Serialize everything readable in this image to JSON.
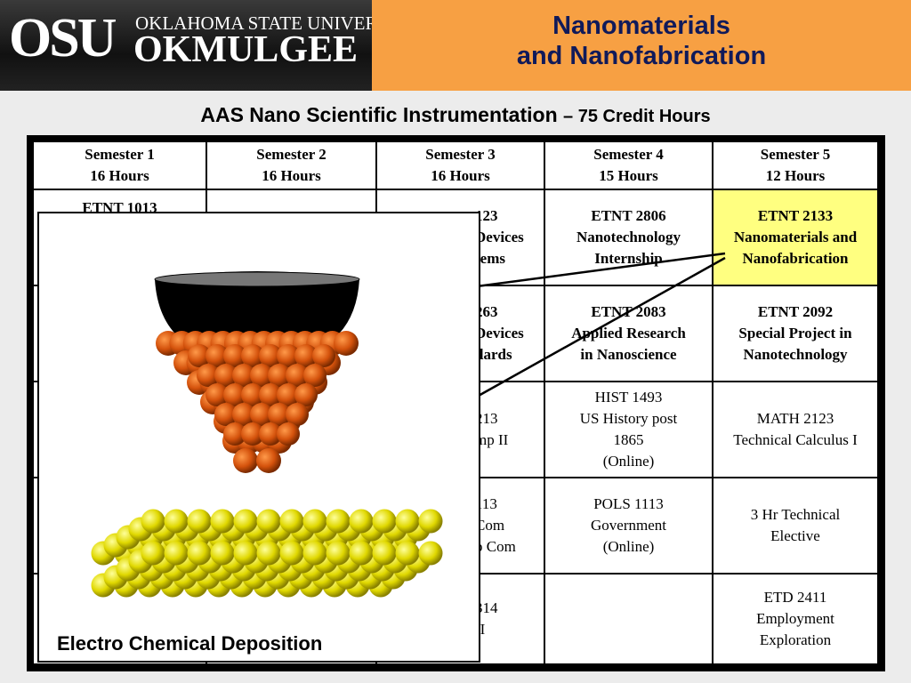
{
  "header": {
    "logo": {
      "abbr": "OSU",
      "university": "OKLAHOMA STATE UNIVERSITY",
      "campus": "OKMULGEE"
    },
    "title": [
      "Nanomaterials",
      "and Nanofabrication"
    ]
  },
  "subtitle": {
    "main": "AAS Nano Scientific Instrumentation",
    "credits": "– 75 Credit Hours"
  },
  "table": {
    "header": [
      [
        "Semester 1",
        "16 Hours"
      ],
      [
        "Semester 2",
        "16 Hours"
      ],
      [
        "Semester 3",
        "16 Hours"
      ],
      [
        "Semester 4",
        "15 Hours"
      ],
      [
        "Semester 5",
        "12 Hours"
      ]
    ],
    "rows": [
      [
        [
          "ETNT 1013"
        ],
        [],
        [
          "123",
          "Devices",
          "tems"
        ],
        [
          "ETNT 2806",
          "Nanotechnology",
          "Internship"
        ],
        [
          "ETNT 2133",
          "Nanomaterials and",
          "Nanofabrication"
        ]
      ],
      [
        [],
        [],
        [
          "263",
          "Devices",
          "dards"
        ],
        [
          "ETNT 2083",
          "Applied Research",
          "in Nanoscience"
        ],
        [
          "ETNT 2092",
          "Special Project in",
          "Nanotechnology"
        ]
      ],
      [
        [],
        [],
        [
          "213",
          "mp II"
        ],
        [
          "HIST 1493",
          "US History post",
          "1865",
          "(Online)"
        ],
        [
          "MATH 2123",
          "Technical Calculus I"
        ]
      ],
      [
        [],
        [],
        [
          "113",
          "Com",
          "p Com"
        ],
        [
          "POLS 1113",
          "Government",
          "(Online)"
        ],
        [
          "3 Hr Technical",
          "Elective"
        ]
      ],
      [
        [],
        [],
        [
          "314",
          "II"
        ],
        [],
        [
          "ETD 2411",
          "Employment",
          "Exploration"
        ]
      ]
    ]
  },
  "figure": {
    "caption": "Electro Chemical Deposition"
  }
}
